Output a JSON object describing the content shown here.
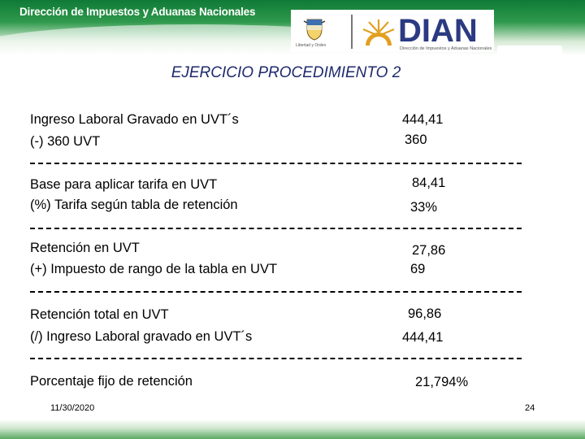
{
  "header": {
    "title": "Dirección de Impuestos y Aduanas Nacionales",
    "crest_caption": "Libertad y Orden",
    "logo_text": "DIAN",
    "logo_subtitle": "Dirección de Impuestos y Aduanas Nacionales",
    "colors": {
      "green": "#0f7a36",
      "navy": "#2b3a82",
      "gold": "#e2a020"
    }
  },
  "slide": {
    "title": "EJERCICIO PROCEDIMIENTO 2",
    "rows": [
      {
        "label": "Ingreso Laboral Gravado en UVT´s",
        "value": "444,41"
      },
      {
        "label": "(-) 360 UVT",
        "value": "360"
      },
      {
        "label": "Base para aplicar tarifa en UVT",
        "value": "84,41"
      },
      {
        "label": "(%) Tarifa según tabla de retención",
        "value": "33%"
      },
      {
        "label": "Retención en UVT",
        "value": "27,86"
      },
      {
        "label": "(+) Impuesto de rango de la tabla en UVT",
        "value": "69"
      },
      {
        "label": "Retención total en UVT",
        "value": "96,86"
      },
      {
        "label": "(/) Ingreso Laboral gravado en UVT´s",
        "value": "444,41"
      },
      {
        "label": "Porcentaje fijo de retención",
        "value": "21,794%"
      }
    ]
  },
  "footer": {
    "date": "11/30/2020",
    "page_number": "24"
  }
}
